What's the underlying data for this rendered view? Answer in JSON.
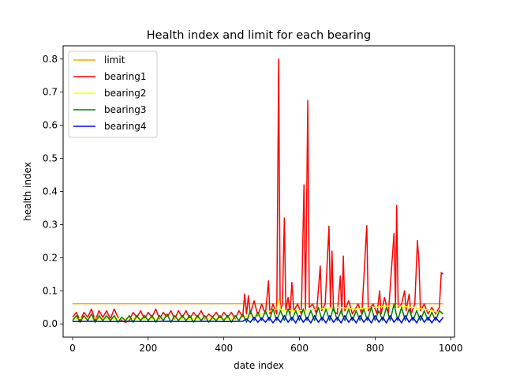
{
  "chart_data": {
    "type": "line",
    "title": "Health index and limit for each bearing",
    "xlabel": "date index",
    "ylabel": "health index",
    "xlim": [
      -25,
      1010
    ],
    "ylim": [
      -0.04,
      0.84
    ],
    "x_ticks": [
      0,
      200,
      400,
      600,
      800,
      1000
    ],
    "y_ticks": [
      0.0,
      0.1,
      0.2,
      0.3,
      0.4,
      0.5,
      0.6,
      0.7,
      0.8
    ],
    "x_tick_labels": [
      "0",
      "200",
      "400",
      "600",
      "800",
      "1000"
    ],
    "y_tick_labels": [
      "0.0",
      "0.1",
      "0.2",
      "0.3",
      "0.4",
      "0.5",
      "0.6",
      "0.7",
      "0.8"
    ],
    "grid": false,
    "legend_position": "top-left",
    "series": [
      {
        "name": "limit",
        "color": "#ffa500",
        "points": [
          [
            0,
            0.061
          ],
          [
            980,
            0.061
          ]
        ]
      },
      {
        "name": "bearing1",
        "color": "#ff0000",
        "points": [
          [
            0,
            0.02
          ],
          [
            10,
            0.035
          ],
          [
            20,
            0.01
          ],
          [
            30,
            0.035
          ],
          [
            40,
            0.02
          ],
          [
            50,
            0.045
          ],
          [
            60,
            0.01
          ],
          [
            70,
            0.04
          ],
          [
            80,
            0.02
          ],
          [
            90,
            0.04
          ],
          [
            100,
            0.015
          ],
          [
            110,
            0.045
          ],
          [
            120,
            0.02
          ],
          [
            130,
            0.01
          ],
          [
            140,
            0.005
          ],
          [
            150,
            0.01
          ],
          [
            160,
            0.035
          ],
          [
            170,
            0.02
          ],
          [
            180,
            0.04
          ],
          [
            190,
            0.015
          ],
          [
            200,
            0.035
          ],
          [
            210,
            0.02
          ],
          [
            220,
            0.045
          ],
          [
            230,
            0.015
          ],
          [
            240,
            0.035
          ],
          [
            250,
            0.02
          ],
          [
            260,
            0.04
          ],
          [
            270,
            0.015
          ],
          [
            280,
            0.04
          ],
          [
            290,
            0.02
          ],
          [
            300,
            0.04
          ],
          [
            310,
            0.015
          ],
          [
            320,
            0.035
          ],
          [
            330,
            0.02
          ],
          [
            340,
            0.04
          ],
          [
            350,
            0.015
          ],
          [
            360,
            0.03
          ],
          [
            370,
            0.02
          ],
          [
            380,
            0.035
          ],
          [
            390,
            0.015
          ],
          [
            400,
            0.035
          ],
          [
            410,
            0.02
          ],
          [
            420,
            0.035
          ],
          [
            430,
            0.015
          ],
          [
            440,
            0.04
          ],
          [
            450,
            0.02
          ],
          [
            455,
            0.09
          ],
          [
            460,
            0.03
          ],
          [
            465,
            0.085
          ],
          [
            470,
            0.03
          ],
          [
            480,
            0.07
          ],
          [
            490,
            0.025
          ],
          [
            500,
            0.06
          ],
          [
            510,
            0.03
          ],
          [
            518,
            0.13
          ],
          [
            522,
            0.03
          ],
          [
            530,
            0.06
          ],
          [
            540,
            0.03
          ],
          [
            545,
            0.8
          ],
          [
            549,
            0.04
          ],
          [
            555,
            0.06
          ],
          [
            560,
            0.32
          ],
          [
            564,
            0.04
          ],
          [
            570,
            0.08
          ],
          [
            575,
            0.03
          ],
          [
            580,
            0.125
          ],
          [
            585,
            0.04
          ],
          [
            595,
            0.06
          ],
          [
            605,
            0.03
          ],
          [
            612,
            0.42
          ],
          [
            616,
            0.04
          ],
          [
            622,
            0.675
          ],
          [
            626,
            0.05
          ],
          [
            635,
            0.06
          ],
          [
            645,
            0.03
          ],
          [
            655,
            0.175
          ],
          [
            659,
            0.04
          ],
          [
            668,
            0.06
          ],
          [
            678,
            0.295
          ],
          [
            682,
            0.05
          ],
          [
            686,
            0.22
          ],
          [
            690,
            0.04
          ],
          [
            700,
            0.03
          ],
          [
            708,
            0.145
          ],
          [
            712,
            0.03
          ],
          [
            716,
            0.205
          ],
          [
            720,
            0.04
          ],
          [
            730,
            0.07
          ],
          [
            740,
            0.03
          ],
          [
            755,
            0.06
          ],
          [
            765,
            0.03
          ],
          [
            778,
            0.297
          ],
          [
            782,
            0.04
          ],
          [
            795,
            0.06
          ],
          [
            805,
            0.03
          ],
          [
            812,
            0.1
          ],
          [
            816,
            0.03
          ],
          [
            825,
            0.08
          ],
          [
            835,
            0.03
          ],
          [
            850,
            0.273
          ],
          [
            854,
            0.05
          ],
          [
            857,
            0.358
          ],
          [
            861,
            0.05
          ],
          [
            870,
            0.06
          ],
          [
            878,
            0.1
          ],
          [
            882,
            0.04
          ],
          [
            890,
            0.09
          ],
          [
            895,
            0.03
          ],
          [
            905,
            0.06
          ],
          [
            912,
            0.252
          ],
          [
            916,
            0.186
          ],
          [
            920,
            0.04
          ],
          [
            930,
            0.06
          ],
          [
            940,
            0.03
          ],
          [
            950,
            0.05
          ],
          [
            960,
            0.03
          ],
          [
            970,
            0.05
          ],
          [
            975,
            0.155
          ],
          [
            980,
            0.15
          ]
        ]
      },
      {
        "name": "bearing2",
        "color": "#ffff00",
        "points": [
          [
            0,
            0.015
          ],
          [
            50,
            0.018
          ],
          [
            100,
            0.015
          ],
          [
            150,
            0.018
          ],
          [
            200,
            0.015
          ],
          [
            250,
            0.02
          ],
          [
            300,
            0.015
          ],
          [
            350,
            0.018
          ],
          [
            400,
            0.015
          ],
          [
            450,
            0.02
          ],
          [
            500,
            0.03
          ],
          [
            540,
            0.045
          ],
          [
            545,
            0.075
          ],
          [
            550,
            0.04
          ],
          [
            600,
            0.04
          ],
          [
            650,
            0.045
          ],
          [
            700,
            0.05
          ],
          [
            750,
            0.045
          ],
          [
            800,
            0.05
          ],
          [
            850,
            0.055
          ],
          [
            900,
            0.05
          ],
          [
            950,
            0.04
          ],
          [
            980,
            0.03
          ]
        ]
      },
      {
        "name": "bearing3",
        "color": "#008000",
        "points": [
          [
            0,
            0.01
          ],
          [
            10,
            0.025
          ],
          [
            20,
            0.005
          ],
          [
            30,
            0.025
          ],
          [
            40,
            0.01
          ],
          [
            50,
            0.03
          ],
          [
            60,
            0.005
          ],
          [
            70,
            0.025
          ],
          [
            80,
            0.01
          ],
          [
            90,
            0.025
          ],
          [
            100,
            0.01
          ],
          [
            110,
            0.025
          ],
          [
            120,
            0.005
          ],
          [
            130,
            0.02
          ],
          [
            140,
            0.01
          ],
          [
            150,
            0.025
          ],
          [
            160,
            0.005
          ],
          [
            170,
            0.025
          ],
          [
            180,
            0.01
          ],
          [
            190,
            0.025
          ],
          [
            200,
            0.01
          ],
          [
            210,
            0.025
          ],
          [
            220,
            0.005
          ],
          [
            230,
            0.025
          ],
          [
            240,
            0.01
          ],
          [
            250,
            0.03
          ],
          [
            260,
            0.005
          ],
          [
            270,
            0.025
          ],
          [
            280,
            0.01
          ],
          [
            290,
            0.025
          ],
          [
            300,
            0.01
          ],
          [
            310,
            0.025
          ],
          [
            320,
            0.005
          ],
          [
            330,
            0.025
          ],
          [
            340,
            0.01
          ],
          [
            350,
            0.025
          ],
          [
            360,
            0.005
          ],
          [
            370,
            0.02
          ],
          [
            380,
            0.01
          ],
          [
            390,
            0.025
          ],
          [
            400,
            0.01
          ],
          [
            410,
            0.025
          ],
          [
            420,
            0.005
          ],
          [
            430,
            0.025
          ],
          [
            440,
            0.01
          ],
          [
            450,
            0.03
          ],
          [
            460,
            0.005
          ],
          [
            470,
            0.04
          ],
          [
            480,
            0.01
          ],
          [
            490,
            0.035
          ],
          [
            500,
            0.01
          ],
          [
            510,
            0.04
          ],
          [
            520,
            0.01
          ],
          [
            530,
            0.045
          ],
          [
            540,
            0.01
          ],
          [
            550,
            0.04
          ],
          [
            560,
            0.01
          ],
          [
            570,
            0.045
          ],
          [
            580,
            0.01
          ],
          [
            590,
            0.04
          ],
          [
            600,
            0.01
          ],
          [
            610,
            0.045
          ],
          [
            620,
            0.01
          ],
          [
            630,
            0.04
          ],
          [
            640,
            0.01
          ],
          [
            650,
            0.05
          ],
          [
            660,
            0.01
          ],
          [
            670,
            0.045
          ],
          [
            680,
            0.01
          ],
          [
            690,
            0.05
          ],
          [
            700,
            0.01
          ],
          [
            710,
            0.04
          ],
          [
            720,
            0.01
          ],
          [
            730,
            0.045
          ],
          [
            740,
            0.01
          ],
          [
            750,
            0.04
          ],
          [
            760,
            0.01
          ],
          [
            770,
            0.045
          ],
          [
            780,
            0.01
          ],
          [
            790,
            0.05
          ],
          [
            800,
            0.01
          ],
          [
            810,
            0.04
          ],
          [
            820,
            0.01
          ],
          [
            830,
            0.05
          ],
          [
            840,
            0.01
          ],
          [
            850,
            0.06
          ],
          [
            860,
            0.01
          ],
          [
            870,
            0.05
          ],
          [
            880,
            0.01
          ],
          [
            890,
            0.045
          ],
          [
            900,
            0.01
          ],
          [
            910,
            0.04
          ],
          [
            920,
            0.01
          ],
          [
            930,
            0.04
          ],
          [
            940,
            0.01
          ],
          [
            950,
            0.035
          ],
          [
            960,
            0.01
          ],
          [
            970,
            0.04
          ],
          [
            980,
            0.03
          ]
        ]
      },
      {
        "name": "bearing4",
        "color": "#0000ff",
        "points": [
          [
            0,
            0.007
          ],
          [
            50,
            0.008
          ],
          [
            100,
            0.007
          ],
          [
            150,
            0.008
          ],
          [
            200,
            0.007
          ],
          [
            250,
            0.008
          ],
          [
            300,
            0.007
          ],
          [
            350,
            0.008
          ],
          [
            400,
            0.007
          ],
          [
            450,
            0.008
          ],
          [
            460,
            0.015
          ],
          [
            470,
            0.005
          ],
          [
            480,
            0.02
          ],
          [
            490,
            0.005
          ],
          [
            500,
            0.018
          ],
          [
            510,
            0.005
          ],
          [
            520,
            0.02
          ],
          [
            530,
            0.003
          ],
          [
            540,
            0.02
          ],
          [
            550,
            0.005
          ],
          [
            560,
            0.025
          ],
          [
            570,
            0.005
          ],
          [
            580,
            0.02
          ],
          [
            590,
            0.003
          ],
          [
            600,
            0.025
          ],
          [
            610,
            0.005
          ],
          [
            620,
            0.02
          ],
          [
            630,
            0.003
          ],
          [
            640,
            0.025
          ],
          [
            650,
            0.005
          ],
          [
            660,
            0.02
          ],
          [
            670,
            0.003
          ],
          [
            680,
            0.025
          ],
          [
            690,
            0.005
          ],
          [
            700,
            0.02
          ],
          [
            710,
            0.003
          ],
          [
            720,
            0.025
          ],
          [
            730,
            0.005
          ],
          [
            740,
            0.02
          ],
          [
            750,
            0.003
          ],
          [
            760,
            0.025
          ],
          [
            770,
            0.005
          ],
          [
            780,
            0.02
          ],
          [
            790,
            0.003
          ],
          [
            800,
            0.025
          ],
          [
            810,
            0.005
          ],
          [
            820,
            0.02
          ],
          [
            830,
            0.003
          ],
          [
            840,
            0.025
          ],
          [
            850,
            0.005
          ],
          [
            860,
            0.02
          ],
          [
            870,
            0.003
          ],
          [
            880,
            0.025
          ],
          [
            890,
            0.005
          ],
          [
            900,
            0.02
          ],
          [
            910,
            0.003
          ],
          [
            920,
            0.025
          ],
          [
            930,
            0.005
          ],
          [
            940,
            0.02
          ],
          [
            950,
            0.003
          ],
          [
            960,
            0.02
          ],
          [
            970,
            0.005
          ],
          [
            980,
            0.02
          ]
        ]
      }
    ]
  }
}
